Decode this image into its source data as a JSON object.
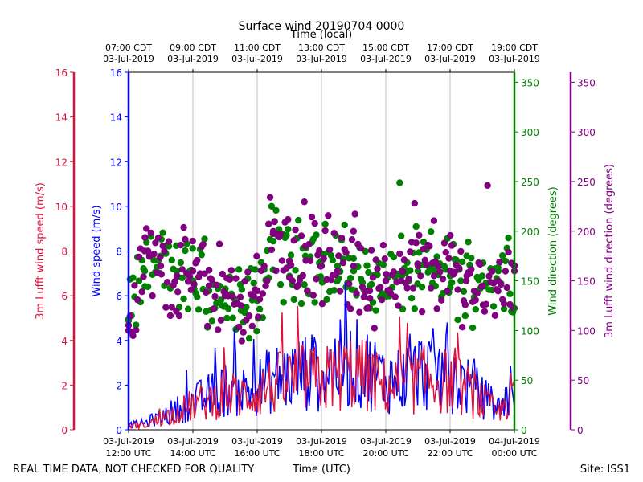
{
  "chart_data": {
    "type": "scatter",
    "title": "Surface wind 20190704 0000",
    "xlabel_bottom": "Time (UTC)",
    "xlabel_top": "Time (local)",
    "footer_left": "REAL TIME DATA, NOT CHECKED FOR QUALITY",
    "footer_right": "Site: ISS1",
    "x_range_hours_utc": [
      12,
      24
    ],
    "bottom_ticks": [
      {
        "date": "03-Jul-2019",
        "time": "12:00 UTC"
      },
      {
        "date": "03-Jul-2019",
        "time": "14:00 UTC"
      },
      {
        "date": "03-Jul-2019",
        "time": "16:00 UTC"
      },
      {
        "date": "03-Jul-2019",
        "time": "18:00 UTC"
      },
      {
        "date": "03-Jul-2019",
        "time": "20:00 UTC"
      },
      {
        "date": "03-Jul-2019",
        "time": "22:00 UTC"
      },
      {
        "date": "04-Jul-2019",
        "time": "00:00 UTC"
      }
    ],
    "top_ticks": [
      {
        "time": "07:00 CDT",
        "date": "03-Jul-2019"
      },
      {
        "time": "09:00 CDT",
        "date": "03-Jul-2019"
      },
      {
        "time": "11:00 CDT",
        "date": "03-Jul-2019"
      },
      {
        "time": "13:00 CDT",
        "date": "03-Jul-2019"
      },
      {
        "time": "15:00 CDT",
        "date": "03-Jul-2019"
      },
      {
        "time": "17:00 CDT",
        "date": "03-Jul-2019"
      },
      {
        "time": "19:00 CDT",
        "date": "03-Jul-2019"
      }
    ],
    "axes": {
      "lufft_speed": {
        "label": "3m Lufft wind speed (m/s)",
        "range": [
          0,
          16
        ],
        "ticks": [
          "0",
          "2",
          "4",
          "6",
          "8",
          "10",
          "12",
          "14",
          "16"
        ],
        "color": "#dc143c"
      },
      "wind_speed": {
        "label": "Wind speed (m/s)",
        "range": [
          0,
          16
        ],
        "ticks": [
          "0",
          "2",
          "4",
          "6",
          "8",
          "10",
          "12",
          "14",
          "16"
        ],
        "color": "#0000ff"
      },
      "wind_dir": {
        "label": "Wind direction (degrees)",
        "range": [
          0,
          360
        ],
        "ticks": [
          "0",
          "50",
          "100",
          "150",
          "200",
          "250",
          "300",
          "350"
        ],
        "color": "#008000"
      },
      "lufft_dir": {
        "label": "3m Lufft wind direction (degrees)",
        "range": [
          0,
          360
        ],
        "ticks": [
          "0",
          "50",
          "100",
          "150",
          "200",
          "250",
          "300",
          "350"
        ],
        "color": "#800080"
      }
    },
    "series": [
      {
        "name": "Wind speed (m/s)",
        "style": "line",
        "color": "#0000ff",
        "x": [
          12.0,
          12.5,
          13.0,
          13.5,
          14.0,
          14.5,
          15.0,
          15.5,
          16.0,
          16.5,
          17.0,
          17.5,
          18.0,
          18.5,
          19.0,
          19.5,
          20.0,
          20.5,
          21.0,
          21.5,
          22.0,
          22.5,
          23.0,
          23.5,
          24.0
        ],
        "values": [
          0.2,
          0.3,
          0.6,
          0.9,
          1.2,
          1.5,
          1.8,
          1.7,
          1.9,
          2.3,
          2.4,
          2.6,
          2.5,
          2.9,
          3.0,
          2.7,
          2.2,
          2.3,
          2.6,
          2.7,
          2.4,
          2.0,
          1.5,
          0.9,
          2.1
        ]
      },
      {
        "name": "3m Lufft wind speed (m/s)",
        "style": "line",
        "color": "#dc143c",
        "x": [
          12.0,
          12.5,
          13.0,
          13.5,
          14.0,
          14.5,
          15.0,
          15.5,
          16.0,
          16.5,
          17.0,
          17.5,
          18.0,
          18.5,
          19.0,
          19.5,
          20.0,
          20.5,
          21.0,
          21.5,
          22.0,
          22.5,
          23.0,
          23.5,
          24.0
        ],
        "values": [
          0.2,
          0.2,
          0.5,
          0.8,
          1.1,
          1.3,
          1.6,
          1.5,
          1.7,
          2.0,
          2.2,
          2.3,
          2.2,
          2.5,
          2.6,
          2.3,
          1.9,
          2.0,
          2.2,
          2.3,
          2.1,
          1.8,
          1.3,
          0.7,
          1.8
        ]
      },
      {
        "name": "Wind direction (degrees)",
        "style": "scatter",
        "color": "#008000",
        "x": [
          12.0,
          12.5,
          13.0,
          13.5,
          14.0,
          14.5,
          15.0,
          15.5,
          16.0,
          16.5,
          17.0,
          17.5,
          18.0,
          18.5,
          19.0,
          19.5,
          20.0,
          20.5,
          21.0,
          21.5,
          22.0,
          22.5,
          23.0,
          23.5,
          24.0
        ],
        "values": [
          110,
          160,
          175,
          160,
          150,
          140,
          125,
          120,
          130,
          190,
          165,
          175,
          170,
          165,
          160,
          145,
          150,
          155,
          160,
          160,
          155,
          150,
          155,
          160,
          165
        ]
      },
      {
        "name": "3m Lufft wind direction (degrees)",
        "style": "scatter",
        "color": "#800080",
        "x": [
          12.0,
          12.5,
          13.0,
          13.5,
          14.0,
          14.5,
          15.0,
          15.5,
          16.0,
          16.5,
          17.0,
          17.5,
          18.0,
          18.5,
          19.0,
          19.5,
          20.0,
          20.5,
          21.0,
          21.5,
          22.0,
          22.5,
          23.0,
          23.5,
          24.0
        ],
        "values": [
          100,
          180,
          165,
          155,
          160,
          145,
          135,
          125,
          140,
          200,
          170,
          185,
          165,
          160,
          165,
          140,
          150,
          160,
          165,
          155,
          160,
          150,
          145,
          150,
          160
        ]
      }
    ]
  }
}
